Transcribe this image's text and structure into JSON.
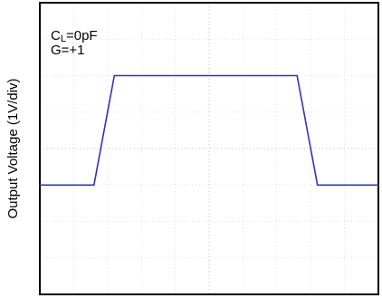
{
  "chart_data": {
    "type": "line",
    "title": "",
    "xlabel": "",
    "ylabel": "Output Voltage (1V/div)",
    "grid": true,
    "grid_divisions": {
      "x": 10,
      "y": 8
    },
    "ylim": [
      -4,
      4
    ],
    "xlim": [
      0,
      10
    ],
    "annotations": {
      "load_cap_prefix": "C",
      "load_cap_sub": "L",
      "load_cap_value": "=0pF",
      "gain": "G=+1"
    },
    "series": [
      {
        "color": "#3333bb",
        "x": [
          0,
          1.6,
          2.2,
          7.6,
          8.2,
          10
        ],
        "y": [
          -1,
          -1,
          2,
          2,
          -1,
          -1
        ]
      }
    ]
  }
}
